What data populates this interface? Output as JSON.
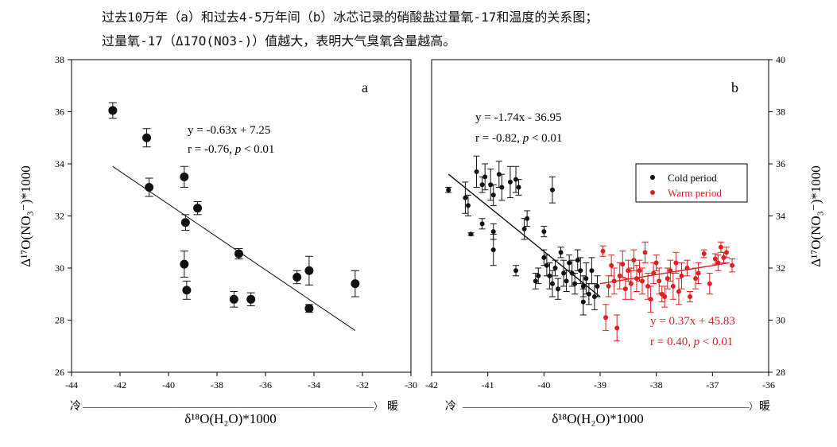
{
  "caption": {
    "line1": "过去10万年（a）和过去4-5万年间（b）冰芯记录的硝酸盐过量氧-17和温度的关系图；",
    "line2": "过量氧-17（Δ17O(NO3-)）值越大，表明大气臭氧含量越高。"
  },
  "labels": {
    "cold": "冷",
    "warm": "暖",
    "arrow_line": "——————————————————————————————————————〉",
    "y_axis": "Δ¹⁷O(NO₃⁻)*1000",
    "x_axis": "δ¹⁸O(H₂O)*1000"
  },
  "colors": {
    "cold": "#111111",
    "warm": "#e02020",
    "axis": "#000000"
  },
  "chart_data": [
    {
      "panel_label": "a",
      "type": "scatter",
      "xlim": [
        -44,
        -30
      ],
      "ylim": [
        26,
        38
      ],
      "xticks": [
        "-44",
        "-42",
        "-40",
        "-38",
        "-36",
        "-34",
        "-32",
        "-30"
      ],
      "yticks": [
        "26",
        "28",
        "30",
        "32",
        "34",
        "36",
        "38"
      ],
      "xlabel": "δ¹⁸O(H₂O)*1000",
      "ylabel": "Δ¹⁷O(NO₃⁻)*1000",
      "equation": "y = -0.63x + 7.25",
      "stats_prefix": "r = -0.76, ",
      "stats_p": "p",
      "stats_suffix": " < 0.01",
      "fit": {
        "x": [
          -42.3,
          -32.3
        ],
        "y": [
          33.9,
          27.6
        ]
      },
      "points": [
        {
          "x": -42.3,
          "y": 36.05,
          "err": 0.3
        },
        {
          "x": -40.9,
          "y": 35.0,
          "err": 0.35
        },
        {
          "x": -40.8,
          "y": 33.1,
          "err": 0.35
        },
        {
          "x": -39.35,
          "y": 33.5,
          "err": 0.4
        },
        {
          "x": -39.3,
          "y": 31.75,
          "err": 0.3
        },
        {
          "x": -38.8,
          "y": 32.3,
          "err": 0.25
        },
        {
          "x": -39.35,
          "y": 30.15,
          "err": 0.5
        },
        {
          "x": -39.25,
          "y": 29.15,
          "err": 0.35
        },
        {
          "x": -37.1,
          "y": 30.55,
          "err": 0.2
        },
        {
          "x": -37.3,
          "y": 28.8,
          "err": 0.3
        },
        {
          "x": -36.6,
          "y": 28.8,
          "err": 0.25
        },
        {
          "x": -34.7,
          "y": 29.65,
          "err": 0.25
        },
        {
          "x": -34.2,
          "y": 29.9,
          "err": 0.55
        },
        {
          "x": -34.2,
          "y": 28.45,
          "err": 0.15
        },
        {
          "x": -32.3,
          "y": 29.4,
          "err": 0.5
        }
      ]
    },
    {
      "panel_label": "b",
      "type": "scatter",
      "xlim": [
        -42,
        -36
      ],
      "ylim": [
        28,
        40
      ],
      "xticks": [
        "-42",
        "-41",
        "-40",
        "-39",
        "-38",
        "-37",
        "-36"
      ],
      "yticks": [
        "28",
        "30",
        "32",
        "34",
        "36",
        "38",
        "40"
      ],
      "xlabel": "δ¹⁸O(H₂O)*1000",
      "ylabel": "Δ¹⁷O(NO₃⁻)*1000",
      "legend_position": "top-right",
      "series": [
        {
          "name": "Cold period",
          "color": "#111111",
          "equation": "y = -1.74x - 36.95",
          "stats_prefix": "r = -0.82, ",
          "stats_p": "p",
          "stats_suffix": " < 0.01",
          "fit": {
            "x": [
              -41.7,
              -39.0
            ],
            "y": [
              35.6,
              30.9
            ]
          },
          "points": [
            {
              "x": -41.7,
              "y": 35.0,
              "err": 0.1
            },
            {
              "x": -41.4,
              "y": 34.7,
              "err": 0.6
            },
            {
              "x": -41.35,
              "y": 34.4,
              "err": 0.4
            },
            {
              "x": -41.2,
              "y": 35.7,
              "err": 0.6
            },
            {
              "x": -41.1,
              "y": 35.2,
              "err": 0.3
            },
            {
              "x": -41.05,
              "y": 35.5,
              "err": 0.5
            },
            {
              "x": -40.95,
              "y": 35.2,
              "err": 0.6
            },
            {
              "x": -40.9,
              "y": 34.8,
              "err": 0.4
            },
            {
              "x": -40.8,
              "y": 35.6,
              "err": 0.5
            },
            {
              "x": -40.75,
              "y": 35.1,
              "err": 0.5
            },
            {
              "x": -40.6,
              "y": 35.3,
              "err": 0.6
            },
            {
              "x": -40.5,
              "y": 35.4,
              "err": 0.5
            },
            {
              "x": -40.45,
              "y": 35.1,
              "err": 0.3
            },
            {
              "x": -41.1,
              "y": 33.7,
              "err": 0.2
            },
            {
              "x": -40.9,
              "y": 33.4,
              "err": 0.3
            },
            {
              "x": -41.3,
              "y": 33.3,
              "err": 0.05
            },
            {
              "x": -40.9,
              "y": 32.7,
              "err": 0.6
            },
            {
              "x": -40.3,
              "y": 33.9,
              "err": 0.3
            },
            {
              "x": -40.35,
              "y": 33.5,
              "err": 0.4
            },
            {
              "x": -40.0,
              "y": 33.4,
              "err": 0.2
            },
            {
              "x": -39.85,
              "y": 35.0,
              "err": 0.5
            },
            {
              "x": -40.5,
              "y": 31.9,
              "err": 0.2
            },
            {
              "x": -40.1,
              "y": 31.7,
              "err": 0.3
            },
            {
              "x": -40.0,
              "y": 32.4,
              "err": 0.3
            },
            {
              "x": -39.95,
              "y": 32.1,
              "err": 0.4
            },
            {
              "x": -39.9,
              "y": 31.7,
              "err": 0.5
            },
            {
              "x": -39.85,
              "y": 31.4,
              "err": 0.5
            },
            {
              "x": -39.8,
              "y": 32.0,
              "err": 0.3
            },
            {
              "x": -39.75,
              "y": 31.2,
              "err": 0.4
            },
            {
              "x": -39.7,
              "y": 32.6,
              "err": 0.2
            },
            {
              "x": -39.65,
              "y": 31.8,
              "err": 0.5
            },
            {
              "x": -39.6,
              "y": 31.5,
              "err": 0.4
            },
            {
              "x": -39.55,
              "y": 32.2,
              "err": 0.3
            },
            {
              "x": -39.5,
              "y": 31.8,
              "err": 0.5
            },
            {
              "x": -39.45,
              "y": 31.4,
              "err": 0.4
            },
            {
              "x": -39.4,
              "y": 32.3,
              "err": 0.4
            },
            {
              "x": -39.35,
              "y": 31.9,
              "err": 0.5
            },
            {
              "x": -39.3,
              "y": 31.3,
              "err": 0.4
            },
            {
              "x": -39.25,
              "y": 31.6,
              "err": 0.6
            },
            {
              "x": -39.2,
              "y": 31.0,
              "err": 0.4
            },
            {
              "x": -39.15,
              "y": 31.9,
              "err": 0.5
            },
            {
              "x": -39.1,
              "y": 30.9,
              "err": 0.5
            },
            {
              "x": -39.3,
              "y": 30.7,
              "err": 0.5
            },
            {
              "x": -39.05,
              "y": 31.3,
              "err": 0.4
            },
            {
              "x": -40.15,
              "y": 31.5,
              "err": 0.3
            }
          ]
        },
        {
          "name": "Warm period",
          "color": "#e02020",
          "equation": "y = 0.37x + 45.83",
          "stats_prefix": "r = 0.40, ",
          "stats_p": "p",
          "stats_suffix": " < 0.01",
          "fit": {
            "x": [
              -39.0,
              -36.7
            ],
            "y": [
              31.4,
              32.2
            ]
          },
          "points": [
            {
              "x": -38.95,
              "y": 32.65,
              "err": 0.2
            },
            {
              "x": -38.9,
              "y": 30.1,
              "err": 0.5
            },
            {
              "x": -38.85,
              "y": 31.3,
              "err": 0.4
            },
            {
              "x": -38.8,
              "y": 32.1,
              "err": 0.4
            },
            {
              "x": -38.75,
              "y": 31.5,
              "err": 0.5
            },
            {
              "x": -38.7,
              "y": 29.7,
              "err": 0.5
            },
            {
              "x": -38.65,
              "y": 31.7,
              "err": 0.5
            },
            {
              "x": -38.6,
              "y": 32.15,
              "err": 0.5
            },
            {
              "x": -38.55,
              "y": 31.2,
              "err": 0.4
            },
            {
              "x": -38.5,
              "y": 31.9,
              "err": 0.4
            },
            {
              "x": -38.45,
              "y": 31.4,
              "err": 0.6
            },
            {
              "x": -38.4,
              "y": 32.3,
              "err": 0.4
            },
            {
              "x": -38.35,
              "y": 31.6,
              "err": 0.5
            },
            {
              "x": -38.3,
              "y": 31.9,
              "err": 0.4
            },
            {
              "x": -38.25,
              "y": 31.5,
              "err": 0.5
            },
            {
              "x": -38.2,
              "y": 32.6,
              "err": 0.4
            },
            {
              "x": -38.15,
              "y": 31.3,
              "err": 0.5
            },
            {
              "x": -38.1,
              "y": 30.8,
              "err": 0.5
            },
            {
              "x": -38.05,
              "y": 31.8,
              "err": 0.4
            },
            {
              "x": -38.0,
              "y": 32.2,
              "err": 0.3
            },
            {
              "x": -37.95,
              "y": 31.5,
              "err": 0.5
            },
            {
              "x": -37.9,
              "y": 31.0,
              "err": 0.3
            },
            {
              "x": -37.85,
              "y": 30.9,
              "err": 0.4
            },
            {
              "x": -37.8,
              "y": 31.6,
              "err": 0.4
            },
            {
              "x": -37.75,
              "y": 31.9,
              "err": 0.4
            },
            {
              "x": -37.7,
              "y": 31.3,
              "err": 0.5
            },
            {
              "x": -37.65,
              "y": 32.2,
              "err": 0.4
            },
            {
              "x": -37.6,
              "y": 31.1,
              "err": 0.5
            },
            {
              "x": -37.55,
              "y": 31.7,
              "err": 0.5
            },
            {
              "x": -37.45,
              "y": 32.0,
              "err": 0.3
            },
            {
              "x": -37.4,
              "y": 30.9,
              "err": 0.2
            },
            {
              "x": -37.3,
              "y": 31.6,
              "err": 0.4
            },
            {
              "x": -37.25,
              "y": 31.8,
              "err": 0.4
            },
            {
              "x": -37.15,
              "y": 32.55,
              "err": 0.15
            },
            {
              "x": -37.05,
              "y": 31.4,
              "err": 0.4
            },
            {
              "x": -36.95,
              "y": 32.35,
              "err": 0.2
            },
            {
              "x": -36.85,
              "y": 32.8,
              "err": 0.2
            },
            {
              "x": -36.8,
              "y": 32.4,
              "err": 0.2
            },
            {
              "x": -36.75,
              "y": 32.6,
              "err": 0.2
            },
            {
              "x": -36.65,
              "y": 32.1,
              "err": 0.25
            },
            {
              "x": -36.9,
              "y": 32.2,
              "err": 0.3
            }
          ]
        }
      ]
    }
  ]
}
